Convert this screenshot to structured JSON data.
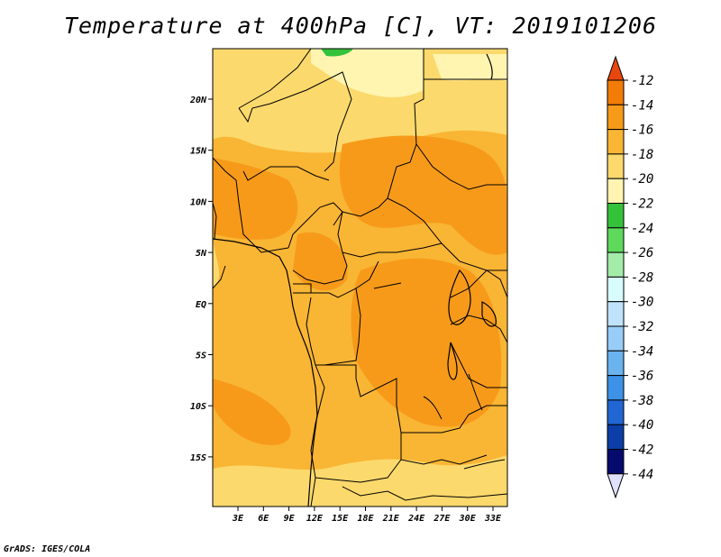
{
  "title": "Temperature at 400hPa [C], VT: 2019101206",
  "credit": "GrADS: IGES/COLA",
  "lat_labels": [
    "20N",
    "15N",
    "10N",
    "5N",
    "EQ",
    "5S",
    "10S",
    "15S"
  ],
  "lon_labels": [
    "3E",
    "6E",
    "9E",
    "12E",
    "15E",
    "18E",
    "21E",
    "24E",
    "27E",
    "30E",
    "33E"
  ],
  "colorbar": {
    "labels": [
      "-12",
      "-14",
      "-16",
      "-18",
      "-20",
      "-22",
      "-24",
      "-26",
      "-28",
      "-30",
      "-32",
      "-34",
      "-36",
      "-38",
      "-40",
      "-42",
      "-44"
    ],
    "colors": [
      "#e6470f",
      "#f37b08",
      "#f79a1a",
      "#f9b534",
      "#fbd96c",
      "#fff4b0",
      "#33c23a",
      "#5ed95c",
      "#a3ecaa",
      "#d8fbfb",
      "#bfe3fb",
      "#98cdf7",
      "#69b3ef",
      "#3d91e6",
      "#2266d4",
      "#0c3ea8",
      "#070a6d",
      "#1a0070",
      "#e0e0ff"
    ]
  }
}
